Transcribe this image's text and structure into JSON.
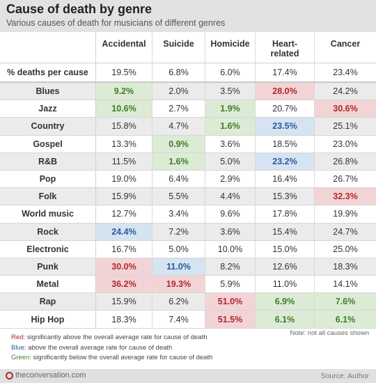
{
  "title": "Cause of death by genre",
  "subtitle": "Various causes of death for musicians of different genres",
  "colors": {
    "red": "#b0272d",
    "red_bg": "#f3d4d6",
    "blue": "#2a5b9a",
    "blue_bg": "#d6e3f1",
    "green": "#3f7d2a",
    "green_bg": "#dcebd5"
  },
  "chart_data": {
    "type": "table",
    "title": "Cause of death by genre",
    "subtitle": "Various causes of death for musicians of different genres",
    "columns": [
      "Accidental",
      "Suicide",
      "Homicide",
      "Heart-related",
      "Cancer"
    ],
    "average": {
      "label": "% deaths per cause",
      "values": [
        "19.5%",
        "6.8%",
        "6.0%",
        "17.4%",
        "23.4%"
      ]
    },
    "rows": [
      {
        "genre": "Blues",
        "values": [
          "9.2%",
          "2.0%",
          "3.5%",
          "28.0%",
          "24.2%"
        ],
        "flags": [
          "green",
          "",
          "",
          "red",
          ""
        ]
      },
      {
        "genre": "Jazz",
        "values": [
          "10.6%",
          "2.7%",
          "1.9%",
          "20.7%",
          "30.6%"
        ],
        "flags": [
          "green",
          "",
          "green",
          "",
          "red"
        ]
      },
      {
        "genre": "Country",
        "values": [
          "15.8%",
          "4.7%",
          "1.6%",
          "23.5%",
          "25.1%"
        ],
        "flags": [
          "",
          "",
          "green",
          "blue",
          ""
        ]
      },
      {
        "genre": "Gospel",
        "values": [
          "13.3%",
          "0.9%",
          "3.6%",
          "18.5%",
          "23.0%"
        ],
        "flags": [
          "",
          "green",
          "",
          "",
          ""
        ]
      },
      {
        "genre": "R&B",
        "values": [
          "11.5%",
          "1.6%",
          "5.0%",
          "23.2%",
          "26.8%"
        ],
        "flags": [
          "",
          "green",
          "",
          "blue",
          ""
        ]
      },
      {
        "genre": "Pop",
        "values": [
          "19.0%",
          "6.4%",
          "2.9%",
          "16.4%",
          "26.7%"
        ],
        "flags": [
          "",
          "",
          "",
          "",
          ""
        ]
      },
      {
        "genre": "Folk",
        "values": [
          "15.9%",
          "5.5%",
          "4.4%",
          "15.3%",
          "32.3%"
        ],
        "flags": [
          "",
          "",
          "",
          "",
          "red"
        ]
      },
      {
        "genre": "World music",
        "values": [
          "12.7%",
          "3.4%",
          "9.6%",
          "17.8%",
          "19.9%"
        ],
        "flags": [
          "",
          "",
          "",
          "",
          ""
        ]
      },
      {
        "genre": "Rock",
        "values": [
          "24.4%",
          "7.2%",
          "3.6%",
          "15.4%",
          "24.7%"
        ],
        "flags": [
          "blue",
          "",
          "",
          "",
          ""
        ]
      },
      {
        "genre": "Electronic",
        "values": [
          "16.7%",
          "5.0%",
          "10.0%",
          "15.0%",
          "25.0%"
        ],
        "flags": [
          "",
          "",
          "",
          "",
          ""
        ]
      },
      {
        "genre": "Punk",
        "values": [
          "30.0%",
          "11.0%",
          "8.2%",
          "12.6%",
          "18.3%"
        ],
        "flags": [
          "red",
          "blue",
          "",
          "",
          ""
        ]
      },
      {
        "genre": "Metal",
        "values": [
          "36.2%",
          "19.3%",
          "5.9%",
          "11.0%",
          "14.1%"
        ],
        "flags": [
          "red",
          "red",
          "",
          "",
          ""
        ]
      },
      {
        "genre": "Rap",
        "values": [
          "15.9%",
          "6.2%",
          "51.0%",
          "6.9%",
          "7.6%"
        ],
        "flags": [
          "",
          "",
          "red",
          "green",
          "green"
        ]
      },
      {
        "genre": "Hip Hop",
        "values": [
          "18.3%",
          "7.4%",
          "51.5%",
          "6.1%",
          "6.1%"
        ],
        "flags": [
          "",
          "",
          "red",
          "green",
          "green"
        ]
      }
    ]
  },
  "column_headers": [
    "Accidental",
    "Suicide",
    "Homicide",
    "Heart-\nrelated",
    "Cancer"
  ],
  "legend": [
    {
      "key": "Red:",
      "text": " significantly above the overall average rate for cause of death",
      "color": "red"
    },
    {
      "key": "Blue:",
      "text": " above the overall average rate for cause of death",
      "color": "blue"
    },
    {
      "key": "Green:",
      "text": " significantly below the overall average rate for cause of death",
      "color": "green"
    }
  ],
  "note": "Note: not all causes shown",
  "footer": {
    "brand": "theconversation.com",
    "source": "Source: Author"
  }
}
